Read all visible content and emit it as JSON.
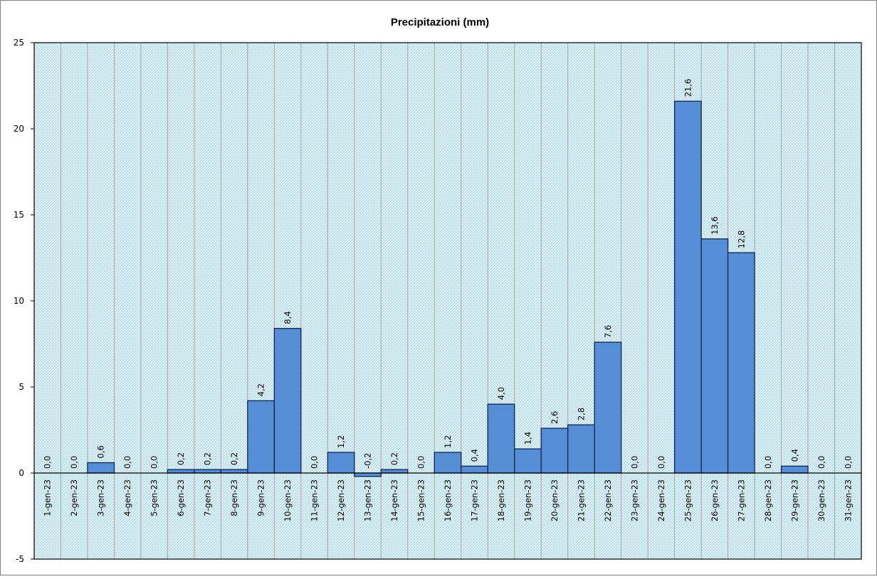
{
  "chart_data": {
    "type": "bar",
    "title": "Precipitazioni  (mm)",
    "xlabel": "",
    "ylabel": "",
    "ylim": [
      -5,
      25
    ],
    "yticks": [
      -5,
      0,
      5,
      10,
      15,
      20,
      25
    ],
    "grid": true,
    "legend": "none",
    "categories": [
      "1-gen-23",
      "2-gen-23",
      "3-gen-23",
      "4-gen-23",
      "5-gen-23",
      "6-gen-23",
      "7-gen-23",
      "8-gen-23",
      "9-gen-23",
      "10-gen-23",
      "11-gen-23",
      "12-gen-23",
      "13-gen-23",
      "14-gen-23",
      "15-gen-23",
      "16-gen-23",
      "17-gen-23",
      "18-gen-23",
      "19-gen-23",
      "20-gen-23",
      "21-gen-23",
      "22-gen-23",
      "23-gen-23",
      "24-gen-23",
      "25-gen-23",
      "26-gen-23",
      "27-gen-23",
      "28-gen-23",
      "29-gen-23",
      "30-gen-23",
      "31-gen-23"
    ],
    "values": [
      0.0,
      0.0,
      0.6,
      0.0,
      0.0,
      0.2,
      0.2,
      0.2,
      4.2,
      8.4,
      0.0,
      1.2,
      -0.2,
      0.2,
      0.0,
      1.2,
      0.4,
      4.0,
      1.4,
      2.6,
      2.8,
      7.6,
      0.0,
      0.0,
      21.6,
      13.6,
      12.8,
      0.0,
      0.4,
      0.0,
      0.0
    ],
    "data_labels": [
      "0,0",
      "0,0",
      "0,6",
      "0,0",
      "0,0",
      "0,2",
      "0,2",
      "0,2",
      "4,2",
      "8,4",
      "0,0",
      "1,2",
      "-0,2",
      "0,2",
      "0,0",
      "1,2",
      "0,4",
      "4,0",
      "1,4",
      "2,6",
      "2,8",
      "7,6",
      "0,0",
      "0,0",
      "21,6",
      "13,6",
      "12,8",
      "0,0",
      "0,4",
      "0,0",
      "0,0"
    ],
    "colors": {
      "bar_fill": "#558ED5",
      "bar_stroke": "#0F2550",
      "plot_bg": "#DDF0F6",
      "plot_hatch": "#A9D3DE",
      "grid": "#A6A6A6",
      "frame": "#000000"
    }
  }
}
